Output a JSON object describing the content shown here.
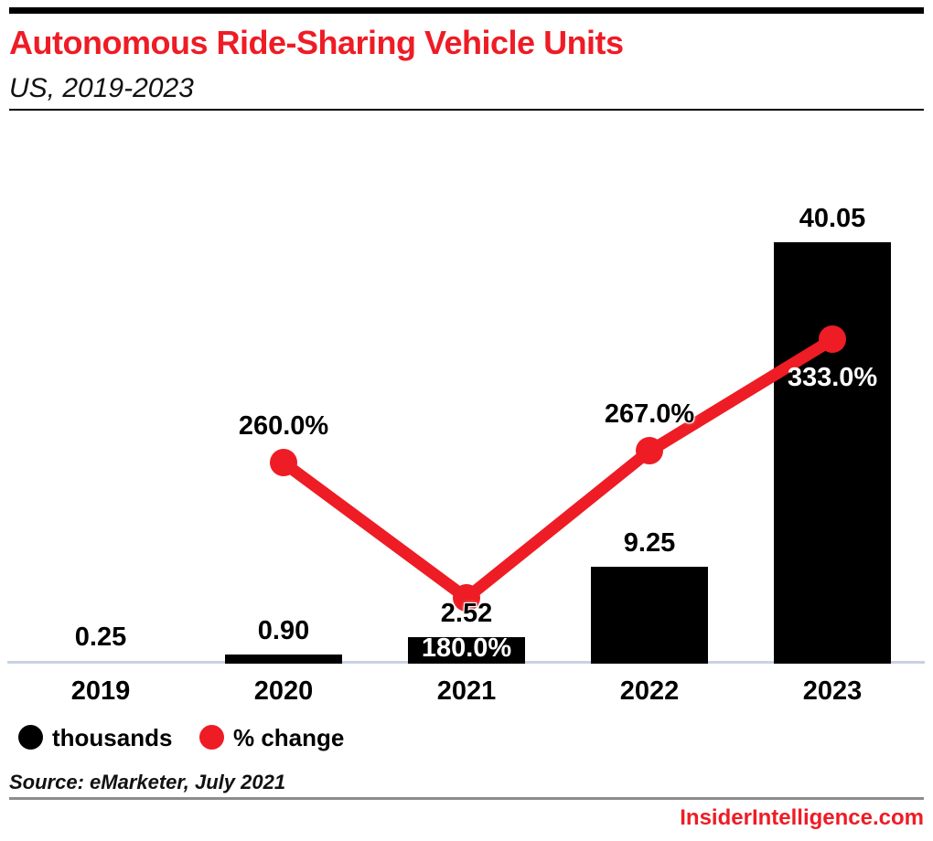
{
  "header": {
    "title": "Autonomous Ride-Sharing Vehicle Units",
    "subtitle": "US, 2019-2023"
  },
  "chart_data": {
    "type": "bar",
    "title": "Autonomous Ride-Sharing Vehicle Units",
    "subtitle": "US, 2019-2023",
    "categories": [
      "2019",
      "2020",
      "2021",
      "2022",
      "2023"
    ],
    "series": [
      {
        "name": "thousands",
        "type": "bar",
        "color": "#000000",
        "values": [
          0.25,
          0.9,
          2.52,
          9.25,
          40.05
        ],
        "labels": [
          "0.25",
          "0.90",
          "2.52",
          "9.25",
          "40.05"
        ]
      },
      {
        "name": "% change",
        "type": "line",
        "color": "#EE1C25",
        "values": [
          null,
          260.0,
          180.0,
          267.0,
          333.0
        ],
        "labels": [
          null,
          "260.0%",
          "180.0%",
          "267.0%",
          "333.0%"
        ],
        "label_color": [
          null,
          "black",
          "white",
          "black",
          "white"
        ],
        "label_placement": [
          null,
          "above",
          "inside_bar",
          "above",
          "below"
        ]
      }
    ],
    "xlabel": "",
    "ylabel": "",
    "ylim_bars": [
      0,
      43.5
    ],
    "grid": false,
    "legend_position": "bottom-left"
  },
  "legend": {
    "items": [
      {
        "label": "thousands",
        "color": "#000000"
      },
      {
        "label": "% change",
        "color": "#EE1C25"
      }
    ]
  },
  "source": {
    "text": "Source: eMarketer, July 2021"
  },
  "footer": {
    "site": "InsiderIntelligence.com"
  },
  "colors": {
    "accent_red": "#EE1C25",
    "bar_black": "#000000",
    "axis_line": "#C9D2E4",
    "divider_gray": "#8C8C8C",
    "background": "#FFFFFF"
  }
}
